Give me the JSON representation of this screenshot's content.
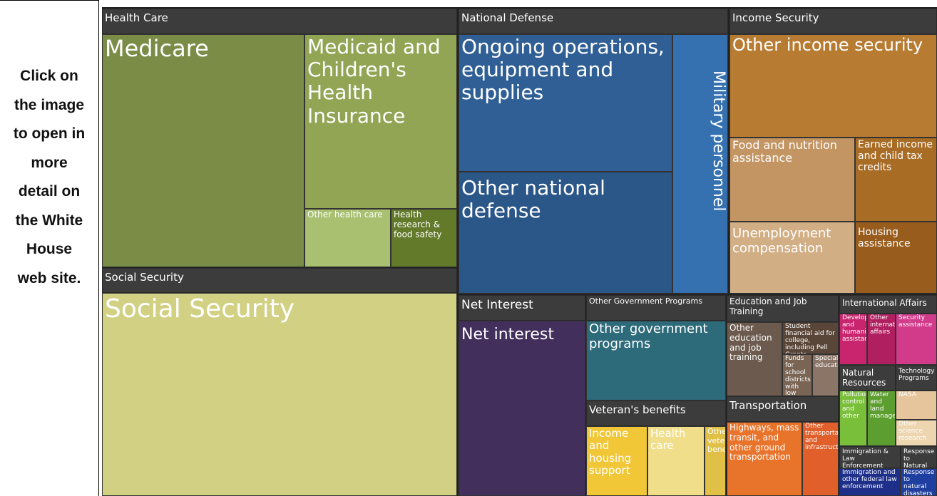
{
  "left_panel": {
    "text": "Click on the image to open in more detail on the White House web site."
  },
  "treemap": {
    "groups": [
      {
        "title": "Health Care",
        "items": [
          "Medicare",
          "Medicaid and Children's Health Insurance",
          "Other health care",
          "Health research & food safety"
        ]
      },
      {
        "title": "Social Security",
        "items": [
          "Social Security"
        ]
      },
      {
        "title": "National Defense",
        "items": [
          "Ongoing operations, equipment and supplies",
          "Other national defense",
          "Military personnel"
        ]
      },
      {
        "title": "Income Security",
        "items": [
          "Other income security",
          "Food and nutrition assistance",
          "Earned income and child tax credits",
          "Unemployment compensation",
          "Housing assistance"
        ]
      },
      {
        "title": "Net Interest",
        "items": [
          "Net interest"
        ]
      },
      {
        "title": "Other Government Programs",
        "items": [
          "Other government programs"
        ]
      },
      {
        "title": "Veteran's benefits",
        "items": [
          "Income and housing support",
          "Health care",
          "Other veterans benefits"
        ]
      },
      {
        "title": "Education and Job Training",
        "items": [
          "Other education and job training",
          "Student financial aid for college, including Pell Grants",
          "Funds for school districts with low income students",
          "Special education"
        ]
      },
      {
        "title": "Transportation",
        "items": [
          "Highways, mass transit, and other ground transportation",
          "Other transportation and infrastructure"
        ]
      },
      {
        "title": "International Affairs",
        "items": [
          "Development and humanitarian assistance",
          "Other international affairs",
          "Security assistance"
        ]
      },
      {
        "title": "Natural Resources",
        "items": [
          "Pollution control and other",
          "Water and land management"
        ]
      },
      {
        "title": "Technology Programs",
        "items": [
          "NASA",
          "Other science research"
        ]
      },
      {
        "title": "Immigration & Law Enforcement",
        "items": [
          "Immigration and other federal law enforcement"
        ]
      },
      {
        "title": "Response to Natural Disasters",
        "items": [
          "Response to natural disasters"
        ]
      }
    ]
  }
}
